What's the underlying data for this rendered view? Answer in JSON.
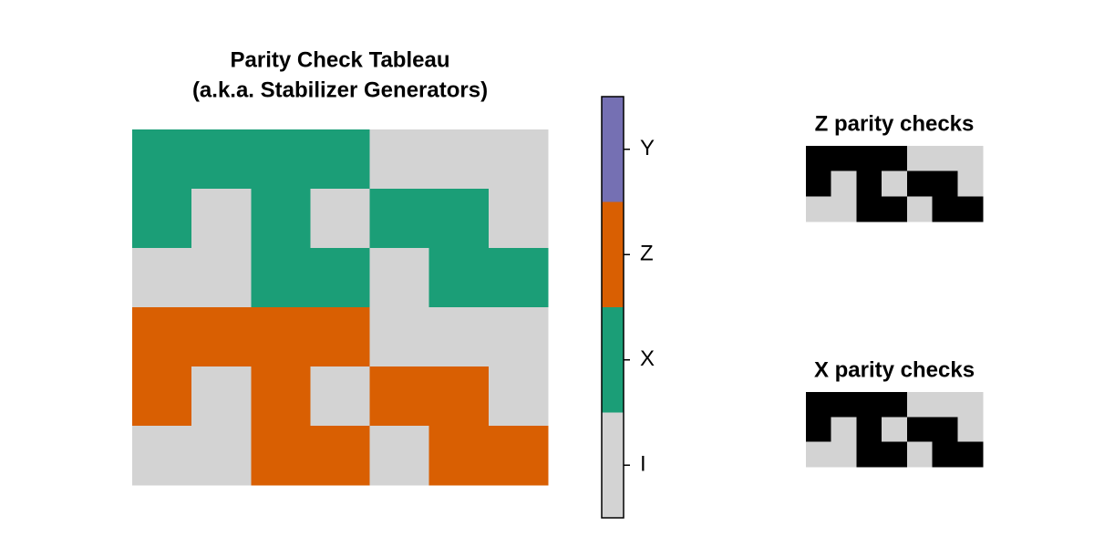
{
  "chart_data": [
    {
      "type": "heatmap",
      "title": [
        "Parity Check Tableau",
        "(a.k.a. Stabilizer Generators)"
      ],
      "values": [
        [
          1,
          1,
          1,
          1,
          0,
          0,
          0
        ],
        [
          1,
          0,
          1,
          0,
          1,
          1,
          0
        ],
        [
          0,
          0,
          1,
          1,
          0,
          1,
          1
        ],
        [
          2,
          2,
          2,
          2,
          0,
          0,
          0
        ],
        [
          2,
          0,
          2,
          0,
          2,
          2,
          0
        ],
        [
          0,
          0,
          2,
          2,
          0,
          2,
          2
        ]
      ],
      "colors": [
        "#d3d3d3",
        "#1b9e77",
        "#d95f02",
        "#7570b3"
      ],
      "clim": [
        -0.5,
        3.5
      ],
      "cticks": [
        {
          "value": 0,
          "label": "I"
        },
        {
          "value": 1,
          "label": "X"
        },
        {
          "value": 2,
          "label": "Z"
        },
        {
          "value": 3,
          "label": "Y"
        }
      ]
    },
    {
      "type": "heatmap",
      "title": "Z parity checks",
      "values": [
        [
          1,
          1,
          1,
          1,
          0,
          0,
          0
        ],
        [
          1,
          0,
          1,
          0,
          1,
          1,
          0
        ],
        [
          0,
          0,
          1,
          1,
          0,
          1,
          1
        ]
      ],
      "colors": [
        "#d3d3d3",
        "#000000"
      ]
    },
    {
      "type": "heatmap",
      "title": "X parity checks",
      "values": [
        [
          1,
          1,
          1,
          1,
          0,
          0,
          0
        ],
        [
          1,
          0,
          1,
          0,
          1,
          1,
          0
        ],
        [
          0,
          0,
          1,
          1,
          0,
          1,
          1
        ]
      ],
      "colors": [
        "#d3d3d3",
        "#000000"
      ]
    }
  ]
}
